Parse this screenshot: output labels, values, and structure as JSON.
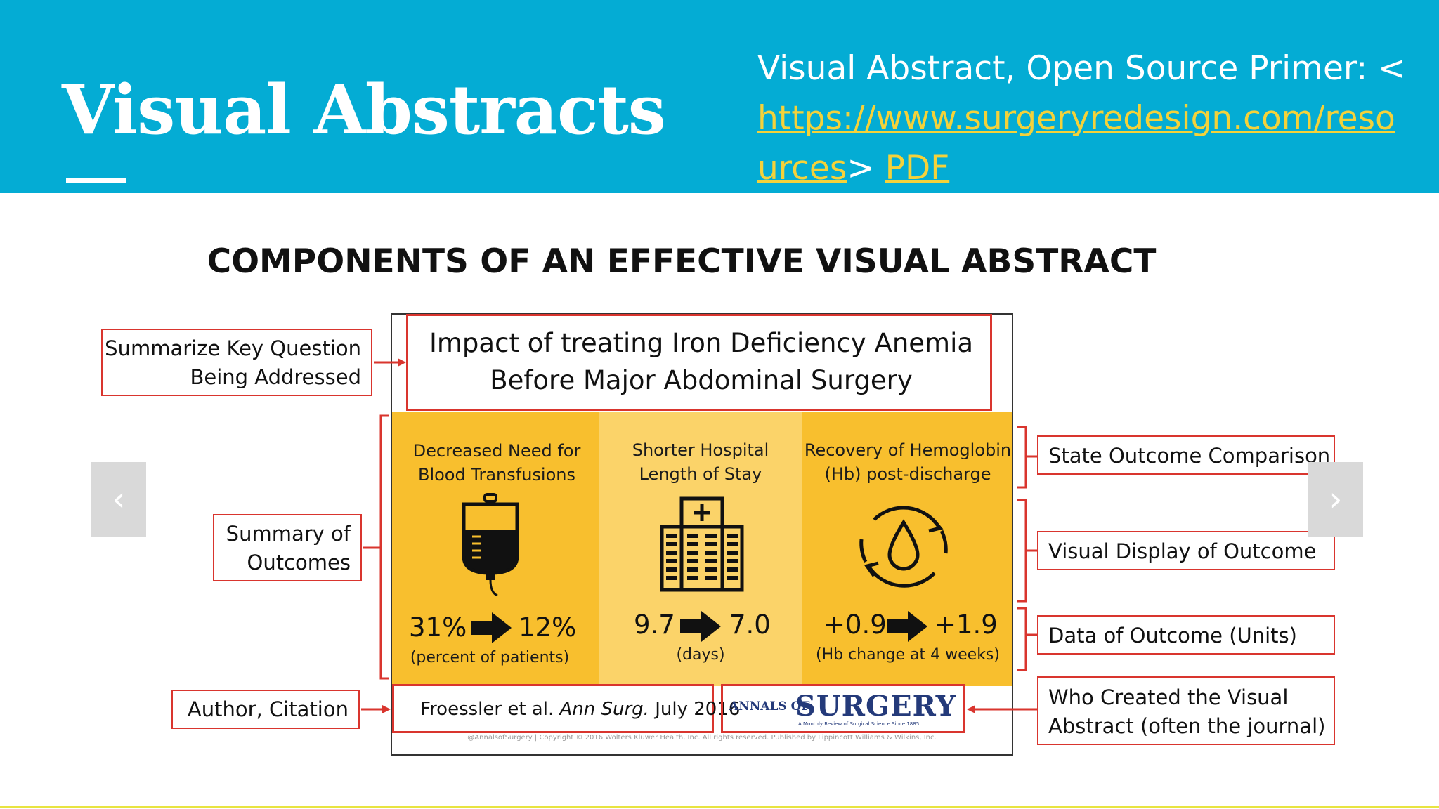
{
  "header": {
    "title": "Visual Abstracts",
    "reference_prefix": "Visual Abstract, Open Source Primer: <",
    "reference_link": "https://www.surgeryredesign.com/resources",
    "reference_mid": "> ",
    "reference_pdf": "PDF"
  },
  "figure": {
    "title": "COMPONENTS OF AN EFFECTIVE VISUAL ABSTRACT",
    "question": "Impact of treating Iron Deficiency Anemia Before Major Abdominal Surgery",
    "columns": [
      {
        "heading": "Decreased Need for Blood Transfusions",
        "before": "31%",
        "after": "12%",
        "unit": "(percent of patients)",
        "icon": "iv-bag-icon"
      },
      {
        "heading": "Shorter Hospital Length of Stay",
        "before": "9.7",
        "after": "7.0",
        "unit": "(days)",
        "icon": "hospital-icon"
      },
      {
        "heading": "Recovery of Hemoglobin (Hb) post-discharge",
        "before": "+0.9",
        "after": "+1.9",
        "unit": "(Hb change at 4 weeks)",
        "icon": "blood-drop-cycle-icon"
      }
    ],
    "citation_authors": "Froessler et al. ",
    "citation_journal": "Ann Surg.",
    "citation_date": " July 2016",
    "journal_prefix": "ANNALS OF",
    "journal_name": "SURGERY",
    "journal_tagline": "A Monthly Review of Surgical Science Since 1885",
    "copyright": "@AnnalsofSurgery | Copyright © 2016 Wolters Kluwer Health, Inc. All rights reserved. Published by Lippincott Williams & Wilkins, Inc."
  },
  "labels": {
    "key_question": "Summarize Key Question Being Addressed",
    "summary": "Summary of Outcomes",
    "author": "Author, Citation",
    "outcome_comparison": "State Outcome Comparison",
    "visual_display": "Visual Display of Outcome",
    "data_units": "Data of Outcome (Units)",
    "creator": "Who Created the Visual Abstract (often the journal)"
  },
  "nav": {
    "prev": "‹",
    "next": "›"
  },
  "colors": {
    "header": "#04acd4",
    "link": "#f4d23a",
    "annotation": "#d9352e",
    "panel_yellow": "#f8bf2e"
  }
}
